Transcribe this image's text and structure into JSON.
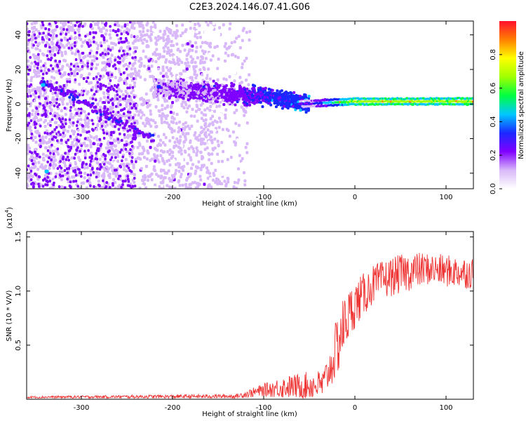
{
  "title": "C2E3.2024.146.07.41.G06",
  "chart_data": [
    {
      "type": "heatmap",
      "xlabel": "Height of straight line (km)",
      "ylabel": "Frequency (Hz)",
      "xlim": [
        -360,
        130
      ],
      "ylim": [
        -49,
        48
      ],
      "xticks": [
        -300,
        -200,
        -100,
        0,
        100
      ],
      "yticks": [
        -40,
        -20,
        0,
        20,
        40
      ],
      "grid": false,
      "colorbar": {
        "label": "Normalized spectral amplitude",
        "range": [
          0,
          1
        ],
        "ticks": [
          0.0,
          0.2,
          0.4,
          0.6,
          0.8
        ],
        "colormap": [
          "#ffffff",
          "#d8b8f8",
          "#8000ff",
          "#1a28ff",
          "#00c8ff",
          "#00ff40",
          "#a0ff00",
          "#ffff00",
          "#ff8000",
          "#ff1030"
        ]
      },
      "features": {
        "carrier_trace": {
          "description_x": [
            -60,
            0,
            130
          ],
          "frequency": [
            0,
            1.5,
            1.5
          ],
          "amplitude": [
            0.2,
            0.65,
            0.65
          ]
        },
        "noise_region_x": [
          -360,
          -130
        ],
        "diffuse_band": {
          "x": [
            -220,
            -140,
            -100,
            -50
          ],
          "frequency": [
            10,
            6,
            5,
            0
          ],
          "amplitude": [
            0.15,
            0.2,
            0.3,
            0.35
          ]
        },
        "descending_streak": {
          "x": [
            -345,
            -300,
            -260,
            -220
          ],
          "frequency": [
            13,
            2,
            -10,
            -20
          ]
        }
      }
    },
    {
      "type": "line",
      "xlabel": "Height of straight line (km)",
      "ylabel": "SNR (10 * V/V)",
      "yscale_label": "(x10",
      "yscale_exp": "4",
      "yscale_close": ")",
      "xlim": [
        -360,
        130
      ],
      "ylim": [
        0,
        1.55
      ],
      "xticks": [
        -300,
        -200,
        -100,
        0,
        100
      ],
      "yticks": [
        0.5,
        1.0,
        1.5
      ],
      "ytick_labels": [
        "0.5",
        "1.0",
        "1.5"
      ],
      "color": "#ee3333",
      "envelope": {
        "x": [
          -360,
          -130,
          -100,
          -80,
          -50,
          -35,
          -25,
          -20,
          -15,
          -10,
          0,
          20,
          40,
          60,
          80,
          100,
          130
        ],
        "mean": [
          0.02,
          0.03,
          0.09,
          0.12,
          0.14,
          0.15,
          0.35,
          0.5,
          0.65,
          0.75,
          0.9,
          1.08,
          1.15,
          1.2,
          1.22,
          1.2,
          1.18
        ],
        "spread": [
          0.01,
          0.02,
          0.06,
          0.1,
          0.13,
          0.14,
          0.2,
          0.3,
          0.3,
          0.25,
          0.22,
          0.18,
          0.18,
          0.18,
          0.15,
          0.15,
          0.15
        ]
      }
    }
  ]
}
